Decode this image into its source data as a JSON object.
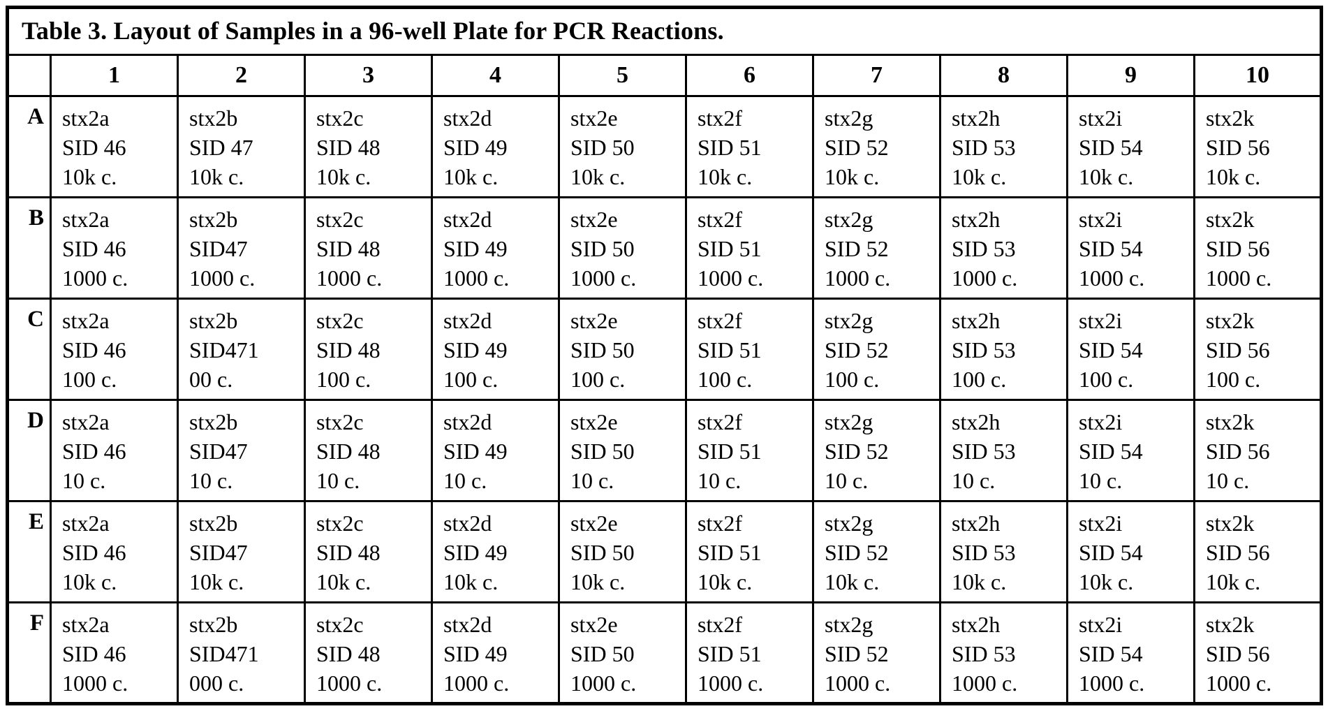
{
  "title": "Table 3. Layout of Samples in a 96-well Plate for PCR Reactions.",
  "column_headers": [
    "1",
    "2",
    "3",
    "4",
    "5",
    "6",
    "7",
    "8",
    "9",
    "10"
  ],
  "rows": [
    {
      "label": "A",
      "cells": [
        [
          "stx2a",
          "SID 46",
          "10k c."
        ],
        [
          "stx2b",
          "SID 47",
          "10k c."
        ],
        [
          "stx2c",
          "SID 48",
          "10k c."
        ],
        [
          "stx2d",
          "SID 49",
          "10k c."
        ],
        [
          "stx2e",
          "SID 50",
          "10k c."
        ],
        [
          "stx2f",
          "SID 51",
          "10k c."
        ],
        [
          "stx2g",
          "SID 52",
          "10k c."
        ],
        [
          "stx2h",
          "SID 53",
          "10k c."
        ],
        [
          "stx2i",
          "SID 54",
          "10k c."
        ],
        [
          "stx2k",
          "SID 56",
          "10k c."
        ]
      ]
    },
    {
      "label": "B",
      "cells": [
        [
          "stx2a",
          "SID 46",
          "1000 c."
        ],
        [
          "stx2b",
          "SID47",
          "1000 c."
        ],
        [
          "stx2c",
          "SID 48",
          "1000 c."
        ],
        [
          "stx2d",
          "SID 49",
          "1000 c."
        ],
        [
          "stx2e",
          "SID 50",
          "1000 c."
        ],
        [
          "stx2f",
          "SID 51",
          "1000 c."
        ],
        [
          "stx2g",
          "SID 52",
          "1000 c."
        ],
        [
          "stx2h",
          "SID 53",
          "1000 c."
        ],
        [
          "stx2i",
          "SID 54",
          "1000 c."
        ],
        [
          "stx2k",
          "SID 56",
          "1000 c."
        ]
      ]
    },
    {
      "label": "C",
      "cells": [
        [
          "stx2a",
          "SID 46",
          "100 c."
        ],
        [
          "stx2b",
          "SID471",
          "00 c."
        ],
        [
          "stx2c",
          "SID 48",
          "100 c."
        ],
        [
          "stx2d",
          "SID 49",
          "100 c."
        ],
        [
          "stx2e",
          "SID 50",
          "100 c."
        ],
        [
          "stx2f",
          "SID 51",
          "100 c."
        ],
        [
          "stx2g",
          "SID 52",
          "100 c."
        ],
        [
          "stx2h",
          "SID 53",
          "100 c."
        ],
        [
          "stx2i",
          "SID 54",
          "100 c."
        ],
        [
          "stx2k",
          "SID 56",
          "100 c."
        ]
      ]
    },
    {
      "label": "D",
      "cells": [
        [
          "stx2a",
          "SID 46",
          "10 c."
        ],
        [
          "stx2b",
          "SID47",
          "10 c."
        ],
        [
          "stx2c",
          "SID 48",
          "10 c."
        ],
        [
          "stx2d",
          "SID 49",
          "10 c."
        ],
        [
          "stx2e",
          "SID 50",
          "10 c."
        ],
        [
          "stx2f",
          "SID 51",
          "10 c."
        ],
        [
          "stx2g",
          "SID 52",
          "10 c."
        ],
        [
          "stx2h",
          "SID 53",
          "10 c."
        ],
        [
          "stx2i",
          "SID 54",
          "10 c."
        ],
        [
          "stx2k",
          "SID 56",
          "10 c."
        ]
      ]
    },
    {
      "label": "E",
      "cells": [
        [
          "stx2a",
          "SID 46",
          "10k c."
        ],
        [
          "stx2b",
          "SID47",
          "10k c."
        ],
        [
          "stx2c",
          "SID 48",
          "10k c."
        ],
        [
          "stx2d",
          "SID 49",
          "10k c."
        ],
        [
          "stx2e",
          "SID 50",
          "10k c."
        ],
        [
          "stx2f",
          "SID 51",
          "10k c."
        ],
        [
          "stx2g",
          "SID 52",
          "10k c."
        ],
        [
          "stx2h",
          "SID 53",
          "10k c."
        ],
        [
          "stx2i",
          "SID 54",
          "10k c."
        ],
        [
          "stx2k",
          "SID 56",
          "10k c."
        ]
      ]
    },
    {
      "label": "F",
      "cells": [
        [
          "stx2a",
          "SID 46",
          "1000 c."
        ],
        [
          "stx2b",
          "SID471",
          "000 c."
        ],
        [
          "stx2c",
          "SID 48",
          "1000 c."
        ],
        [
          "stx2d",
          "SID 49",
          "1000 c."
        ],
        [
          "stx2e",
          "SID 50",
          "1000 c."
        ],
        [
          "stx2f",
          "SID 51",
          "1000 c."
        ],
        [
          "stx2g",
          "SID 52",
          "1000 c."
        ],
        [
          "stx2h",
          "SID 53",
          "1000 c."
        ],
        [
          "stx2i",
          "SID 54",
          "1000 c."
        ],
        [
          "stx2k",
          "SID 56",
          "1000 c."
        ]
      ]
    }
  ]
}
